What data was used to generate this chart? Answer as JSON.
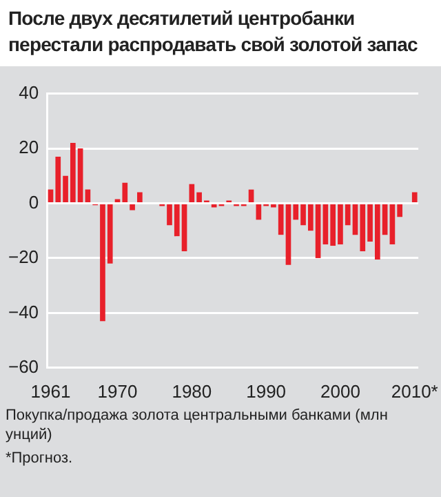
{
  "chart_data": {
    "type": "bar",
    "title": "После двух десятилетий центробанки перестали распродавать свой золотой запас",
    "xlabel": "Покупка/продажа золота центральными банками (млн унций)",
    "annotations": [
      "*Прогноз."
    ],
    "categories": [
      "1961",
      null,
      null,
      null,
      null,
      null,
      null,
      null,
      null,
      "1970",
      null,
      null,
      null,
      null,
      null,
      null,
      null,
      null,
      null,
      "1980",
      null,
      null,
      null,
      null,
      null,
      null,
      null,
      null,
      null,
      "1990",
      null,
      null,
      null,
      null,
      null,
      null,
      null,
      null,
      null,
      "2000",
      null,
      null,
      null,
      null,
      null,
      null,
      null,
      null,
      null,
      "2010*"
    ],
    "values": [
      5,
      17,
      10,
      22,
      20,
      5,
      -0.7,
      -43,
      -22,
      1.5,
      7.5,
      -2.5,
      4,
      0,
      0,
      -1,
      -8,
      -12,
      -17.5,
      7,
      4,
      1,
      -1.5,
      -1,
      1,
      -1,
      -1,
      5,
      -6,
      -1,
      -1.5,
      -11.5,
      -22.5,
      -6,
      -8,
      -10,
      -20,
      -15,
      -15.5,
      -15,
      -8,
      -11.5,
      -17.5,
      -14,
      -20.5,
      -11.5,
      -15,
      -5,
      0,
      4
    ],
    "color": "#e8202a",
    "ylim": [
      -60,
      40
    ],
    "yticks": [
      -60,
      -40,
      -20,
      0,
      20,
      40
    ],
    "grid": "y"
  }
}
